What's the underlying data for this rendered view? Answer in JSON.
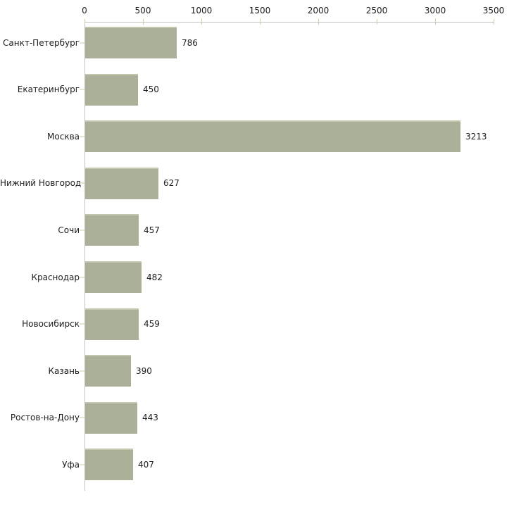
{
  "chart_data": {
    "type": "bar",
    "orientation": "horizontal",
    "title": "",
    "xlabel": "",
    "ylabel": "",
    "categories": [
      "Санкт-Петербург",
      "Екатеринбург",
      "Москва",
      "Нижний Новгород",
      "Сочи",
      "Краснодар",
      "Новосибирск",
      "Казань",
      "Ростов-на-Дону",
      "Уфа"
    ],
    "values": [
      786,
      450,
      3213,
      627,
      457,
      482,
      459,
      390,
      443,
      407
    ],
    "value_labels": [
      "786",
      "450",
      "3213",
      "627",
      "457",
      "482",
      "459",
      "390",
      "443",
      "407"
    ],
    "xlim": [
      0,
      3500
    ],
    "x_ticks": [
      0,
      500,
      1000,
      1500,
      2000,
      2500,
      3000,
      3500
    ],
    "x_axis_position": "top",
    "grid": false,
    "legend": null,
    "colors": {
      "bar_fill": "#abb198",
      "bar_top_highlight": "#c2c7ae",
      "axis_line": "#c2c2c2",
      "tick_mark": "#c9cd9f",
      "text": "#1c1c1c",
      "background": "#ffffff"
    }
  }
}
